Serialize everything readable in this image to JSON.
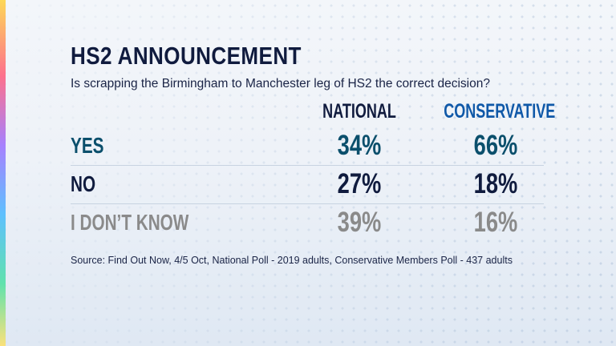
{
  "header": {
    "title": "HS2 ANNOUNCEMENT",
    "subtitle": "Is scrapping the Birmingham to Manchester leg of HS2 the correct decision?"
  },
  "footer": {
    "source": "Source: Find Out Now, 4/5 Oct, National Poll - 2019 adults, Conservative Members Poll - 437 adults"
  },
  "colors": {
    "yes": "#0b4f6c",
    "no": "#101b3e",
    "dont_know": "#8a8a8a",
    "national_header": "#101b3e",
    "conservative_header": "#0f58a8"
  },
  "chart_data": {
    "type": "table",
    "title": "HS2 ANNOUNCEMENT",
    "subtitle": "Is scrapping the Birmingham to Manchester leg of HS2 the correct decision?",
    "columns": [
      "NATIONAL",
      "CONSERVATIVE"
    ],
    "rows": [
      {
        "label": "YES",
        "values": [
          "34%",
          "66%"
        ]
      },
      {
        "label": "NO",
        "values": [
          "27%",
          "18%"
        ]
      },
      {
        "label": "I DON’T KNOW",
        "values": [
          "39%",
          "16%"
        ]
      }
    ]
  }
}
